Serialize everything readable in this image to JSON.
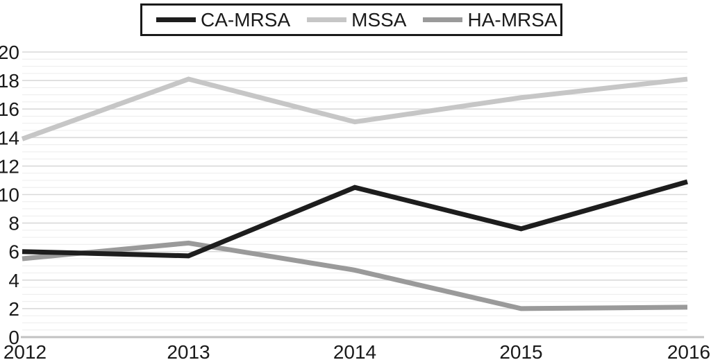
{
  "figure": {
    "background": "#ffffff",
    "text_color": "#1a1a1a"
  },
  "legend": {
    "border_color": "#1a1a1a",
    "position": "top-center"
  },
  "axes": {
    "y_tick_labels": [
      "0",
      "2",
      "4",
      "6",
      "8",
      "10",
      "12",
      "14",
      "16",
      "18",
      "20"
    ],
    "x_tick_labels": [
      "2012",
      "2013",
      "2014",
      "2015",
      "2016"
    ],
    "tick_color": "#1a1a1a",
    "grid_minor_color": "#ececec",
    "grid_major_color": "#d9d9d9",
    "zero_line_color": "#c2c2c2"
  },
  "chart_data": {
    "type": "line",
    "title": "",
    "xlabel": "",
    "ylabel": "",
    "x": [
      2012,
      2013,
      2014,
      2015,
      2016
    ],
    "categories": [
      "2012",
      "2013",
      "2014",
      "2015",
      "2016"
    ],
    "series": [
      {
        "name": "CA-MRSA",
        "color": "#1d1d1d",
        "values": [
          6.0,
          5.7,
          10.5,
          7.6,
          10.9
        ]
      },
      {
        "name": "MSSA",
        "color": "#c6c6c6",
        "values": [
          13.9,
          18.1,
          15.1,
          16.8,
          18.1
        ]
      },
      {
        "name": "HA-MRSA",
        "color": "#9a9a9a",
        "values": [
          5.5,
          6.6,
          4.7,
          2.0,
          2.1
        ]
      }
    ],
    "ylim": [
      0,
      20
    ],
    "y_major_step": 2,
    "y_minor_step": 0.5,
    "grid": true,
    "line_width": 7,
    "legend_position": "top"
  }
}
